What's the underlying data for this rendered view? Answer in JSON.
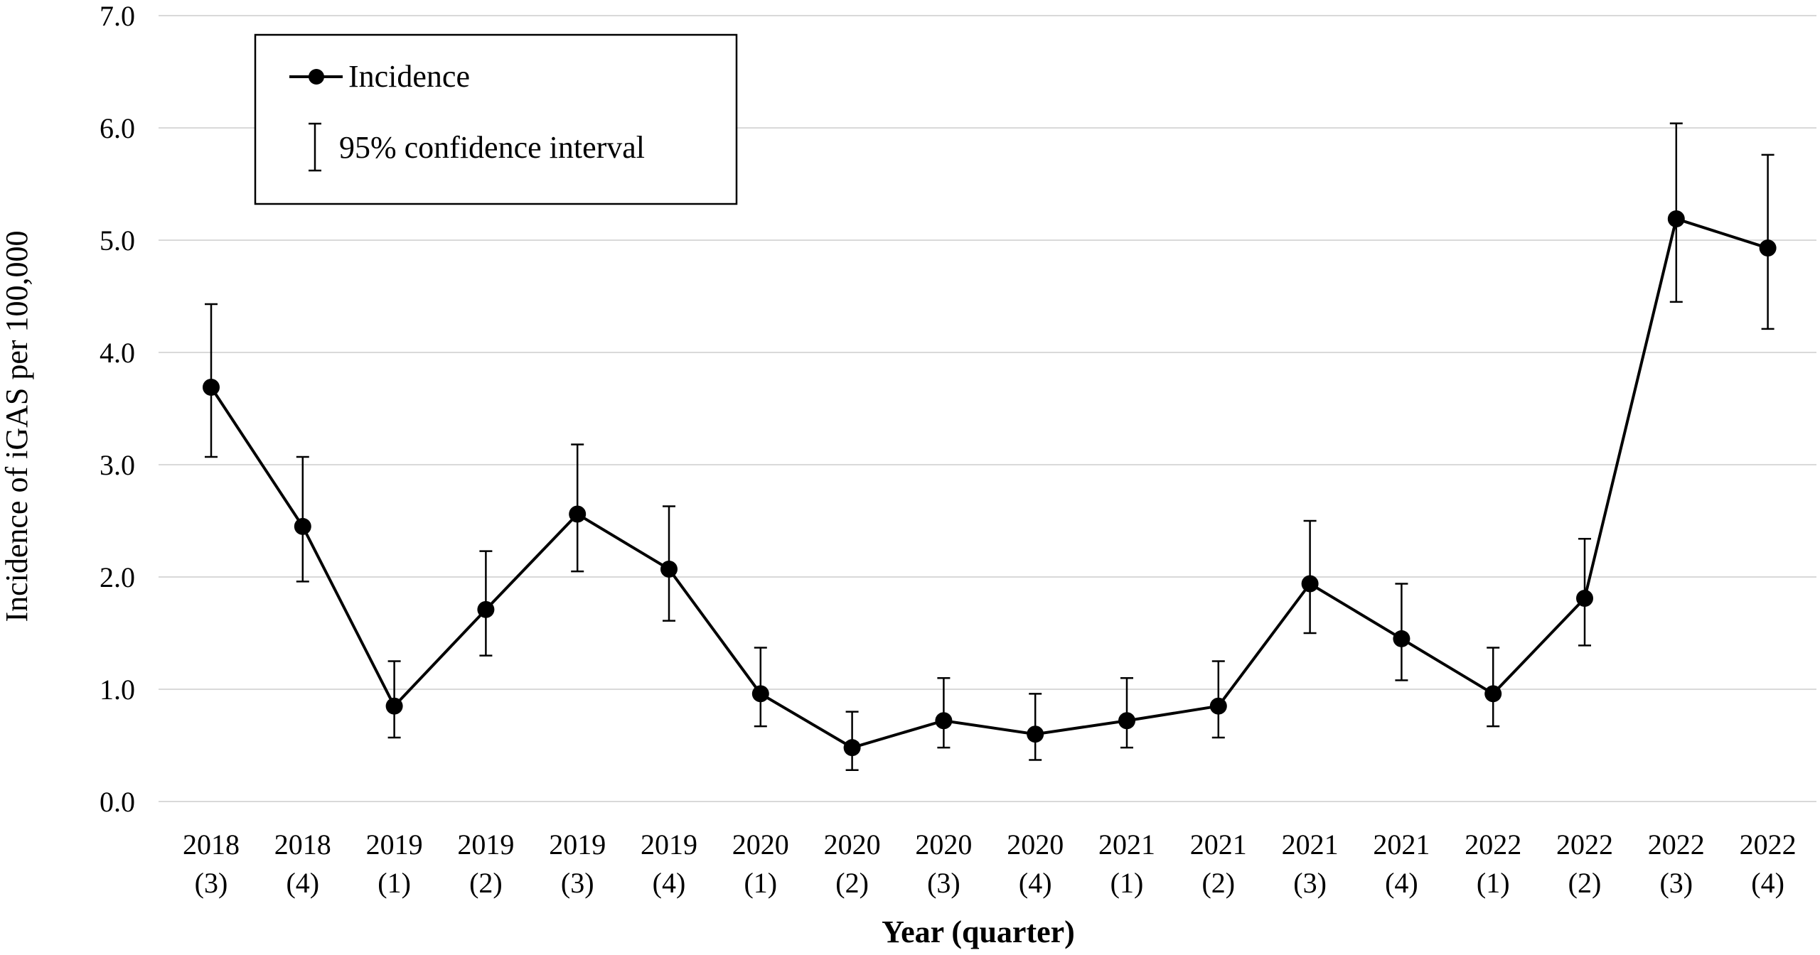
{
  "chart_data": {
    "type": "line",
    "xlabel": "Year (quarter)",
    "ylabel": "Incidence of iGAS per 100,000",
    "ylim": [
      0,
      7
    ],
    "yticks": [
      "0.0",
      "1.0",
      "2.0",
      "3.0",
      "4.0",
      "5.0",
      "6.0",
      "7.0"
    ],
    "grid": true,
    "legend_position": "top-left",
    "categories": [
      {
        "year": "2018",
        "quarter": "(3)"
      },
      {
        "year": "2018",
        "quarter": "(4)"
      },
      {
        "year": "2019",
        "quarter": "(1)"
      },
      {
        "year": "2019",
        "quarter": "(2)"
      },
      {
        "year": "2019",
        "quarter": "(3)"
      },
      {
        "year": "2019",
        "quarter": "(4)"
      },
      {
        "year": "2020",
        "quarter": "(1)"
      },
      {
        "year": "2020",
        "quarter": "(2)"
      },
      {
        "year": "2020",
        "quarter": "(3)"
      },
      {
        "year": "2020",
        "quarter": "(4)"
      },
      {
        "year": "2021",
        "quarter": "(1)"
      },
      {
        "year": "2021",
        "quarter": "(2)"
      },
      {
        "year": "2021",
        "quarter": "(3)"
      },
      {
        "year": "2021",
        "quarter": "(4)"
      },
      {
        "year": "2022",
        "quarter": "(1)"
      },
      {
        "year": "2022",
        "quarter": "(2)"
      },
      {
        "year": "2022",
        "quarter": "(3)"
      },
      {
        "year": "2022",
        "quarter": "(4)"
      }
    ],
    "series": [
      {
        "name": "Incidence",
        "values": [
          3.69,
          2.45,
          0.85,
          1.71,
          2.56,
          2.07,
          0.96,
          0.48,
          0.72,
          0.6,
          0.72,
          0.85,
          1.94,
          1.45,
          0.96,
          1.81,
          5.19,
          4.93
        ],
        "ci_lower": [
          3.07,
          1.96,
          0.57,
          1.3,
          2.05,
          1.61,
          0.67,
          0.28,
          0.48,
          0.37,
          0.48,
          0.57,
          1.5,
          1.08,
          0.67,
          1.39,
          4.45,
          4.21
        ],
        "ci_upper": [
          4.43,
          3.07,
          1.25,
          2.23,
          3.18,
          2.63,
          1.37,
          0.8,
          1.1,
          0.96,
          1.1,
          1.25,
          2.5,
          1.94,
          1.37,
          2.34,
          6.04,
          5.76
        ]
      }
    ],
    "legend": {
      "line_label": "Incidence",
      "errorbar_label": "95% confidence interval"
    },
    "colors": {
      "line": "#000000",
      "grid": "#d9d9d9",
      "background": "#ffffff"
    }
  }
}
